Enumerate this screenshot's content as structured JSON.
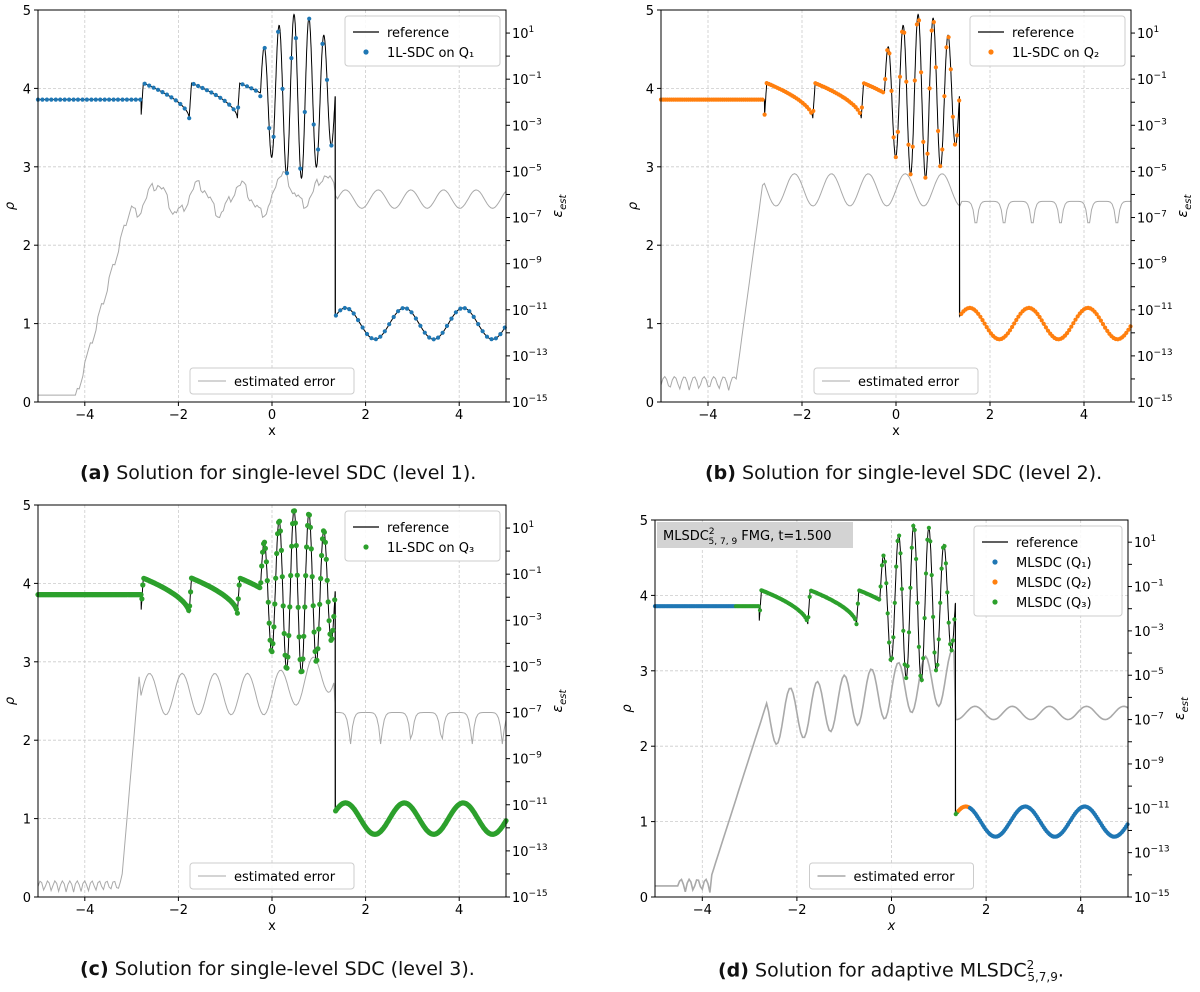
{
  "chart_data": [
    {
      "type": "line",
      "panel": "(a)",
      "caption_label": "(a)",
      "caption_text": "Solution for single-level SDC (level 1).",
      "xlabel": "x",
      "ylabel": "ρ",
      "y2label": "ε_est",
      "xlim": [
        -5,
        5
      ],
      "ylim": [
        0,
        5
      ],
      "y2lim_log10": [
        -15,
        2
      ],
      "xticks": [
        "−4",
        "−2",
        "0",
        "2",
        "4"
      ],
      "yticks": [
        "0",
        "1",
        "2",
        "3",
        "4",
        "5"
      ],
      "grid": true,
      "legend_upper": "top-right",
      "legend_lower": "bottom-center",
      "series": [
        {
          "name": "reference",
          "color": "#000000",
          "kind": "line"
        },
        {
          "name": "1L-SDC on Q₁",
          "color": "#1f77b4",
          "kind": "markers",
          "sampling": "coarse"
        },
        {
          "name": "estimated error",
          "color": "#a9a9a9",
          "kind": "step",
          "axis": "right"
        }
      ]
    },
    {
      "type": "line",
      "panel": "(b)",
      "caption_label": "(b)",
      "caption_text": "Solution for single-level SDC (level 2).",
      "xlabel": "x",
      "ylabel": "ρ",
      "y2label": "ε_est",
      "xlim": [
        -5,
        5
      ],
      "ylim": [
        0,
        5
      ],
      "y2lim_log10": [
        -15,
        2
      ],
      "xticks": [
        "−4",
        "−2",
        "0",
        "2",
        "4"
      ],
      "yticks": [
        "0",
        "1",
        "2",
        "3",
        "4",
        "5"
      ],
      "grid": true,
      "legend_upper": "top-right",
      "legend_lower": "bottom-center",
      "series": [
        {
          "name": "reference",
          "color": "#000000",
          "kind": "line"
        },
        {
          "name": "1L-SDC on Q₂",
          "color": "#ff7f0e",
          "kind": "markers",
          "sampling": "medium"
        },
        {
          "name": "estimated error",
          "color": "#a9a9a9",
          "kind": "step",
          "axis": "right"
        }
      ]
    },
    {
      "type": "line",
      "panel": "(c)",
      "caption_label": "(c)",
      "caption_text": "Solution for single-level SDC (level 3).",
      "xlabel": "x",
      "ylabel": "ρ",
      "y2label": "ε_est",
      "xlim": [
        -5,
        5
      ],
      "ylim": [
        0,
        5
      ],
      "y2lim_log10": [
        -15,
        2
      ],
      "xticks": [
        "−4",
        "−2",
        "0",
        "2",
        "4"
      ],
      "yticks": [
        "0",
        "1",
        "2",
        "3",
        "4",
        "5"
      ],
      "grid": true,
      "legend_upper": "top-right",
      "legend_lower": "bottom-center",
      "series": [
        {
          "name": "reference",
          "color": "#000000",
          "kind": "line"
        },
        {
          "name": "1L-SDC on Q₃",
          "color": "#2ca02c",
          "kind": "markers",
          "sampling": "fine"
        },
        {
          "name": "estimated error",
          "color": "#a9a9a9",
          "kind": "step",
          "axis": "right"
        }
      ]
    },
    {
      "type": "line",
      "panel": "(d)",
      "caption_label": "(d)",
      "caption_text": "Solution for adaptive MLSDC",
      "caption_sup": "2",
      "caption_sub": "5,7,9",
      "caption_end": ".",
      "annotation": "MLSDC",
      "annotation_sup": "2",
      "annotation_sub": "5, 7, 9",
      "annotation_rest": " FMG, t=1.500",
      "xlabel": "x",
      "ylabel": "ρ",
      "y2label": "ε_est",
      "xlim": [
        -5,
        5
      ],
      "ylim": [
        0,
        5
      ],
      "y2lim_log10": [
        -15,
        2
      ],
      "xticks": [
        "−4",
        "−2",
        "0",
        "2",
        "4"
      ],
      "yticks": [
        "0",
        "1",
        "2",
        "3",
        "4",
        "5"
      ],
      "grid": true,
      "legend_upper": "top-right",
      "legend_lower": "bottom-center",
      "series": [
        {
          "name": "reference",
          "color": "#000000",
          "kind": "line"
        },
        {
          "name": "MLSDC (Q₁)",
          "color": "#1f77b4",
          "kind": "markers"
        },
        {
          "name": "MLSDC (Q₂)",
          "color": "#ff7f0e",
          "kind": "markers"
        },
        {
          "name": "MLSDC (Q₃)",
          "color": "#2ca02c",
          "kind": "markers"
        },
        {
          "name": "estimated error",
          "color": "#a9a9a9",
          "kind": "step",
          "axis": "right"
        }
      ]
    }
  ]
}
